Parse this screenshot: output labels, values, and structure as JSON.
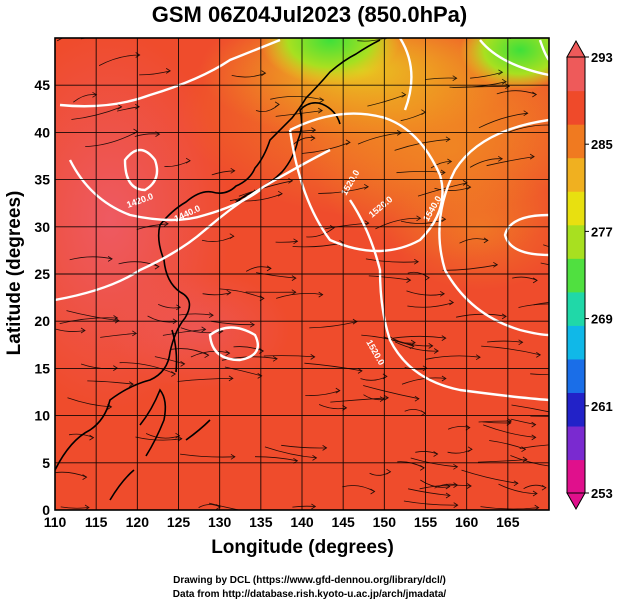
{
  "title": "GSM 06Z04Jul2023 (850.0hPa)",
  "axes": {
    "xlabel": "Longitude (degrees)",
    "ylabel": "Latitude  (degrees)",
    "x_ticks": [
      "110",
      "115",
      "120",
      "125",
      "130",
      "135",
      "140",
      "145",
      "150",
      "155",
      "160",
      "165"
    ],
    "y_ticks": [
      "0",
      "5",
      "10",
      "15",
      "20",
      "25",
      "30",
      "35",
      "40",
      "45"
    ],
    "xlim": [
      110,
      170
    ],
    "ylim": [
      0,
      50
    ]
  },
  "colorbar": {
    "labels": [
      "293",
      "285",
      "277",
      "269",
      "261",
      "253"
    ],
    "range": [
      253,
      293
    ],
    "colors": [
      "#e0108c",
      "#7a2ad0",
      "#2222c8",
      "#1a6ee8",
      "#10b8e8",
      "#20d8a8",
      "#50e040",
      "#a8e020",
      "#e8e010",
      "#f0b020",
      "#f07a20",
      "#ef4a2a",
      "#ee5a5a"
    ]
  },
  "contours": {
    "labels": [
      "1420.0",
      "1440.0",
      "1520.0",
      "1520.0",
      "1540.0",
      "1520.0"
    ]
  },
  "credits": {
    "line1": "Drawing by DCL (https://www.gfd-dennou.org/library/dcl/)",
    "line2": "Data from http://database.rish.kyoto-u.ac.jp/arch/jmadata/"
  }
}
